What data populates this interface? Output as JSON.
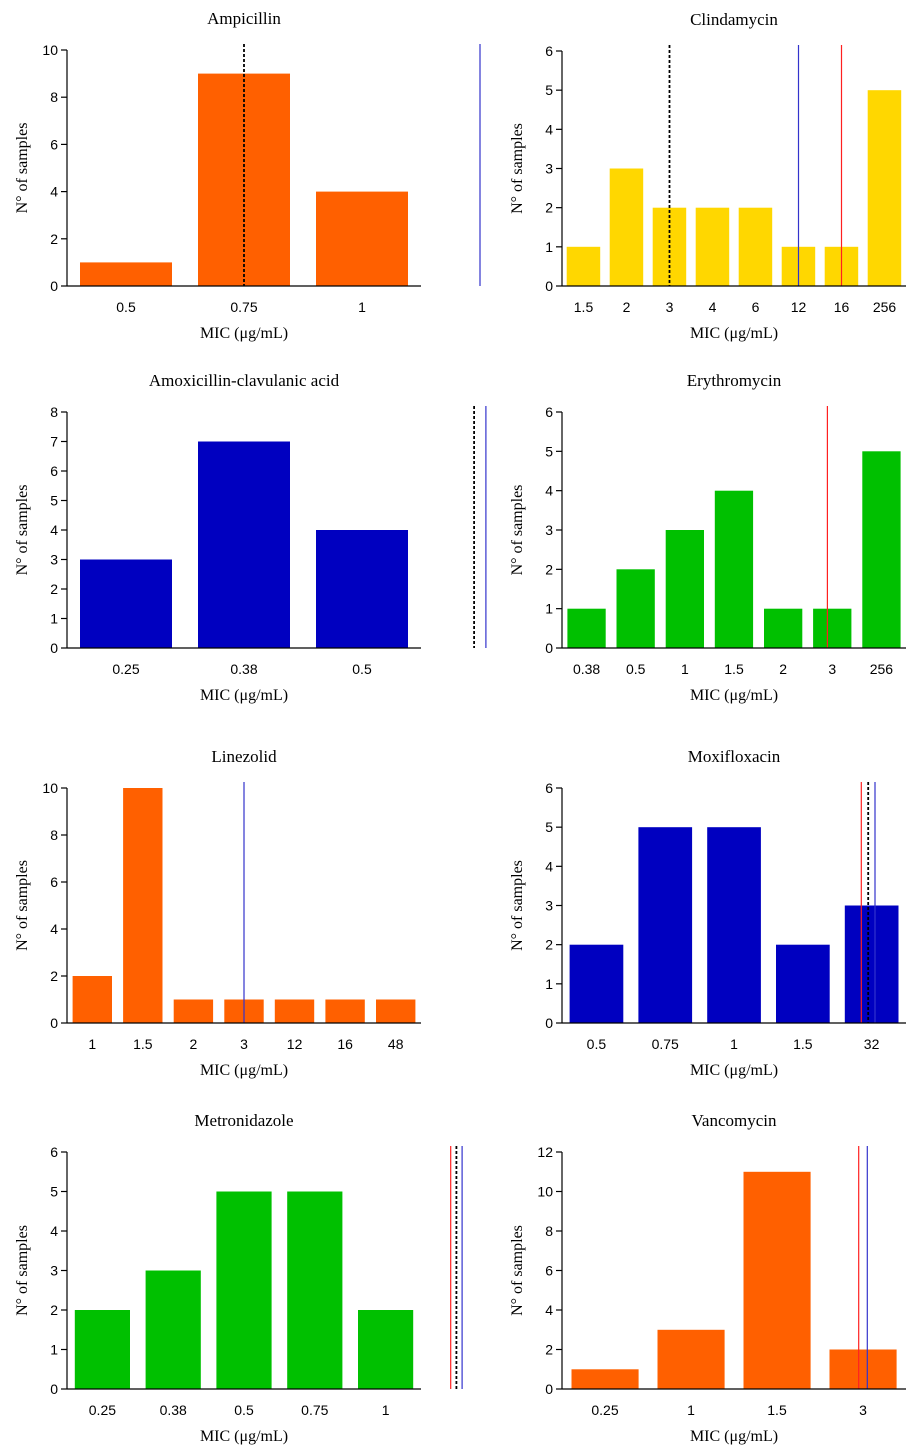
{
  "figure": {
    "ylabel": "N° of samples",
    "xlabel": "MIC (μg/mL)"
  },
  "chart_data": [
    {
      "type": "bar",
      "title": "Ampicillin",
      "xlabel": "MIC (μg/mL)",
      "ylabel": "N° of samples",
      "categories": [
        "0.5",
        "0.75",
        "1"
      ],
      "values": [
        1,
        9,
        4
      ],
      "color": "#ff6000",
      "ylim": [
        0,
        10
      ],
      "yticks": [
        0,
        2,
        4,
        6,
        8,
        10
      ],
      "reference_lines": [
        {
          "style": "dashed",
          "color": "#000000",
          "position_between_categories": 1.5
        },
        {
          "style": "solid",
          "color": "#3333cc",
          "position_between_categories": 3.5
        }
      ]
    },
    {
      "type": "bar",
      "title": "Clindamycin",
      "xlabel": "MIC (μg/mL)",
      "ylabel": "N° of samples",
      "categories": [
        "1.5",
        "2",
        "3",
        "4",
        "6",
        "12",
        "16",
        "256"
      ],
      "values": [
        1,
        3,
        2,
        2,
        2,
        1,
        1,
        5
      ],
      "color": "#ffd700",
      "ylim": [
        0,
        6
      ],
      "yticks": [
        0,
        1,
        2,
        3,
        4,
        5,
        6
      ],
      "reference_lines": [
        {
          "style": "dashed",
          "color": "#000000",
          "position_between_categories": 2.5
        },
        {
          "style": "solid",
          "color": "#3333cc",
          "position_between_categories": 5.5
        },
        {
          "style": "solid",
          "color": "#ff2020",
          "position_between_categories": 6.5
        }
      ]
    },
    {
      "type": "bar",
      "title": "Amoxicillin-clavulanic acid",
      "xlabel": "MIC (μg/mL)",
      "ylabel": "N° of samples",
      "categories": [
        "0.25",
        "0.38",
        "0.5"
      ],
      "values": [
        3,
        7,
        4
      ],
      "color": "#0000c0",
      "ylim": [
        0,
        8
      ],
      "yticks": [
        0,
        1,
        2,
        3,
        4,
        5,
        6,
        7,
        8
      ],
      "reference_lines": [
        {
          "style": "dashed",
          "color": "#000000",
          "position_between_categories": 3.45
        },
        {
          "style": "solid",
          "color": "#3333cc",
          "position_between_categories": 3.55
        }
      ]
    },
    {
      "type": "bar",
      "title": "Erythromycin",
      "xlabel": "MIC (μg/mL)",
      "ylabel": "N° of samples",
      "categories": [
        "0.38",
        "0.5",
        "1",
        "1.5",
        "2",
        "3",
        "256"
      ],
      "values": [
        1,
        2,
        3,
        4,
        1,
        1,
        5
      ],
      "color": "#00c000",
      "ylim": [
        0,
        6
      ],
      "yticks": [
        0,
        1,
        2,
        3,
        4,
        5,
        6
      ],
      "reference_lines": [
        {
          "style": "solid",
          "color": "#ff2020",
          "position_between_categories": 5.4
        }
      ]
    },
    {
      "type": "bar",
      "title": "Linezolid",
      "xlabel": "MIC (μg/mL)",
      "ylabel": "N° of samples",
      "categories": [
        "1",
        "1.5",
        "2",
        "3",
        "12",
        "16",
        "48"
      ],
      "values": [
        2,
        10,
        1,
        1,
        1,
        1,
        1
      ],
      "color": "#ff6000",
      "ylim": [
        0,
        10
      ],
      "yticks": [
        0,
        2,
        4,
        6,
        8,
        10
      ],
      "reference_lines": [
        {
          "style": "solid",
          "color": "#3333cc",
          "position_between_categories": 3.5
        }
      ]
    },
    {
      "type": "bar",
      "title": "Moxifloxacin",
      "xlabel": "MIC (μg/mL)",
      "ylabel": "N° of samples",
      "categories": [
        "0.5",
        "0.75",
        "1",
        "1.5",
        "32"
      ],
      "values": [
        2,
        5,
        5,
        2,
        3
      ],
      "color": "#0000c0",
      "ylim": [
        0,
        6
      ],
      "yticks": [
        0,
        1,
        2,
        3,
        4,
        5,
        6
      ],
      "reference_lines": [
        {
          "style": "solid",
          "color": "#ff2020",
          "position_between_categories": 4.35
        },
        {
          "style": "dashed",
          "color": "#000000",
          "position_between_categories": 4.45
        },
        {
          "style": "solid",
          "color": "#3333cc",
          "position_between_categories": 4.55
        }
      ]
    },
    {
      "type": "bar",
      "title": "Metronidazole",
      "xlabel": "MIC (μg/mL)",
      "ylabel": "N° of samples",
      "categories": [
        "0.25",
        "0.38",
        "0.5",
        "0.75",
        "1"
      ],
      "values": [
        2,
        3,
        5,
        5,
        2
      ],
      "color": "#00c000",
      "ylim": [
        0,
        6
      ],
      "yticks": [
        0,
        1,
        2,
        3,
        4,
        5,
        6
      ],
      "reference_lines": [
        {
          "style": "solid",
          "color": "#ff2020",
          "position_between_categories": 5.42
        },
        {
          "style": "dashed",
          "color": "#000000",
          "position_between_categories": 5.5
        },
        {
          "style": "solid",
          "color": "#3333cc",
          "position_between_categories": 5.58
        }
      ]
    },
    {
      "type": "bar",
      "title": "Vancomycin",
      "xlabel": "MIC (μg/mL)",
      "ylabel": "N° of samples",
      "categories": [
        "0.25",
        "1",
        "1.5",
        "3"
      ],
      "values": [
        1,
        3,
        11,
        2
      ],
      "color": "#ff6000",
      "ylim": [
        0,
        12
      ],
      "yticks": [
        0,
        2,
        4,
        6,
        8,
        10,
        12
      ],
      "reference_lines": [
        {
          "style": "solid",
          "color": "#ff2020",
          "position_between_categories": 3.45
        },
        {
          "style": "solid",
          "color": "#3333cc",
          "position_between_categories": 3.55
        }
      ]
    }
  ]
}
